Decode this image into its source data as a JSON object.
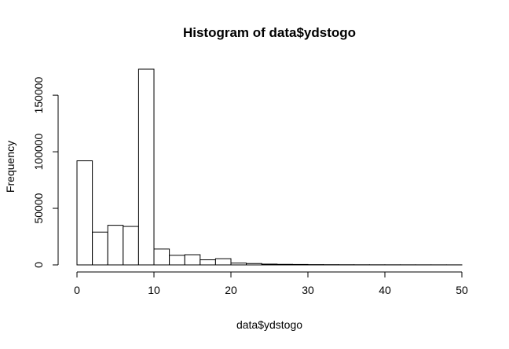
{
  "chart_data": {
    "type": "bar",
    "title": "Histogram of data$ydstogo",
    "xlabel": "data$ydstogo",
    "ylabel": "Frequency",
    "bin_width": 2,
    "bin_start": 0,
    "values": [
      92000,
      29000,
      35000,
      34000,
      173000,
      14000,
      8500,
      9000,
      4500,
      5500,
      1600,
      1200,
      700,
      500,
      400,
      250,
      200,
      150,
      120,
      100,
      90,
      80,
      70,
      60,
      50
    ],
    "xlim": [
      0,
      50
    ],
    "ylim": [
      0,
      173000
    ],
    "xticks": [
      0,
      10,
      20,
      30,
      40,
      50
    ],
    "yticks": [
      0,
      50000,
      100000,
      150000
    ],
    "grid": false,
    "legend": "none"
  }
}
